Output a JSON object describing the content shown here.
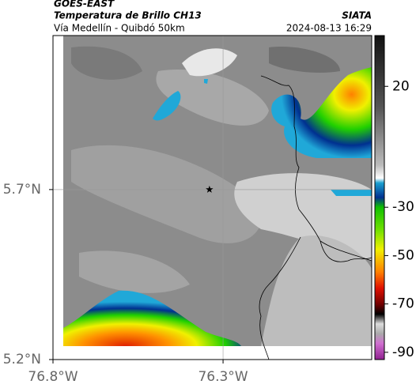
{
  "header": {
    "product": "GOES-EAST",
    "title": "Temperatura de Brillo CH13",
    "subtitle": "Vía Medellín - Quibdó 50km",
    "source": "SIATA",
    "timestamp": "2024-08-13 16:29"
  },
  "map": {
    "lat_range": [
      5.2,
      6.153
    ],
    "lon_range": [
      -76.8,
      -75.863
    ],
    "lat_ticks": [
      {
        "value": 5.7,
        "label": "5.7°N"
      },
      {
        "value": 5.2,
        "label": "5.2°N"
      }
    ],
    "lon_ticks": [
      {
        "value": -76.8,
        "label": "76.8°W"
      },
      {
        "value": -76.3,
        "label": "76.3°W"
      }
    ],
    "marker": {
      "lat": 5.7,
      "lon": -76.34
    }
  },
  "colorbar": {
    "range": [
      41,
      -93
    ],
    "ticks": [
      20,
      -30,
      -50,
      -70,
      -90
    ]
  }
}
